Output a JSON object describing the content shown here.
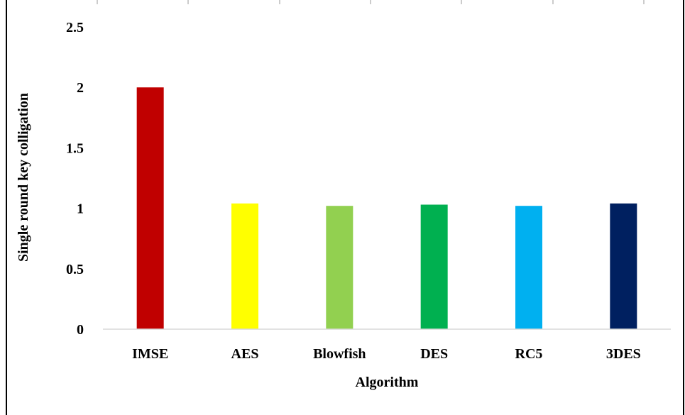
{
  "chart_data": {
    "type": "bar",
    "title": "",
    "xlabel": "Algorithm",
    "ylabel": "Single round key colligation",
    "categories": [
      "IMSE",
      "AES",
      "Blowfish",
      "DES",
      "RC5",
      "3DES"
    ],
    "values": [
      2.0,
      1.04,
      1.02,
      1.03,
      1.02,
      1.04
    ],
    "colors": [
      "#c00000",
      "#ffff00",
      "#92d050",
      "#00b050",
      "#00b0f0",
      "#002060"
    ],
    "ylim": [
      0,
      2.5
    ],
    "yticks": [
      "0",
      "0.5",
      "1",
      "1.5",
      "2",
      "2.5"
    ],
    "ytick_values": [
      0,
      0.5,
      1,
      1.5,
      2,
      2.5
    ],
    "grid": false,
    "legend": "none"
  }
}
